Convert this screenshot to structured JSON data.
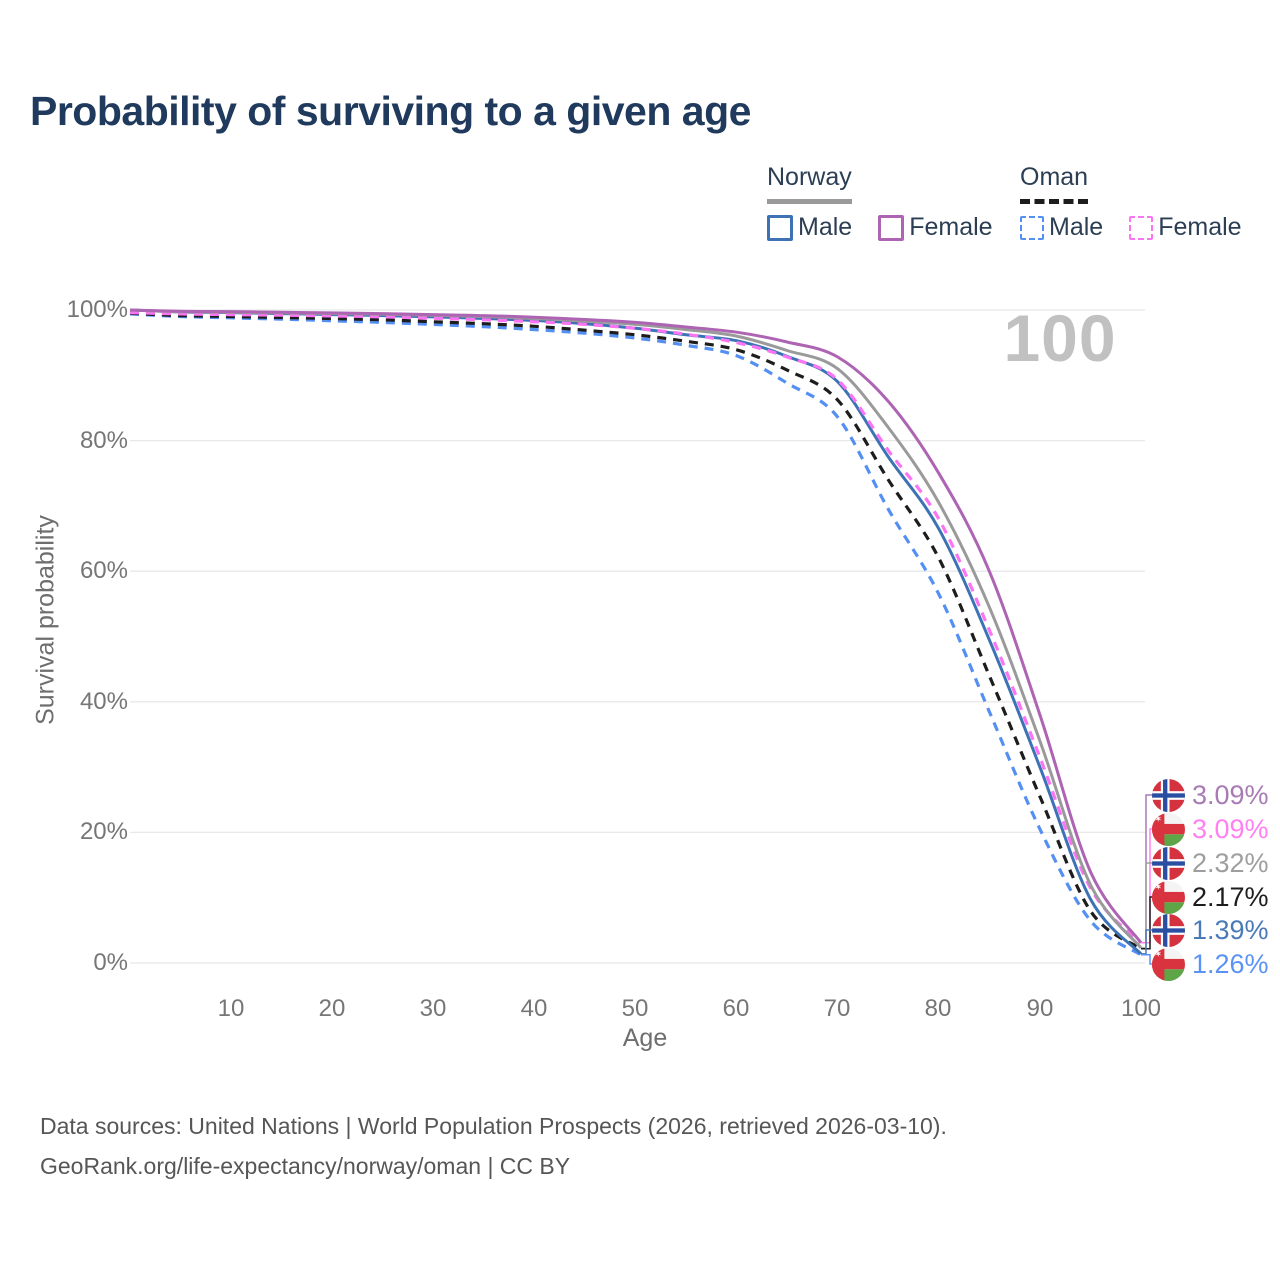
{
  "title": "Probability of surviving to a given age",
  "legend": {
    "groups": [
      {
        "name": "Norway",
        "items": [
          {
            "label": "Male"
          },
          {
            "label": "Female"
          }
        ]
      },
      {
        "name": "Oman",
        "items": [
          {
            "label": "Male"
          },
          {
            "label": "Female"
          }
        ]
      }
    ]
  },
  "watermark": "100",
  "chart_data": {
    "type": "line",
    "title": "Probability of surviving to a given age",
    "xlabel": "Age",
    "ylabel": "Survival probability",
    "xlim": [
      0,
      100
    ],
    "ylim": [
      0,
      100
    ],
    "grid": "horizontal",
    "legend_position": "top-right",
    "x_ticks": [
      "10",
      "20",
      "30",
      "40",
      "50",
      "60",
      "70",
      "80",
      "90",
      "100"
    ],
    "y_ticks": [
      "0%",
      "20%",
      "40%",
      "60%",
      "80%",
      "100%"
    ],
    "ages": [
      0,
      5,
      10,
      15,
      20,
      25,
      30,
      35,
      40,
      45,
      50,
      55,
      60,
      65,
      70,
      75,
      80,
      85,
      90,
      95,
      100
    ],
    "series": [
      {
        "key": "norway_female",
        "country": "Norway",
        "sex": "Female",
        "color": "#ad64b3",
        "style": "solid",
        "end_label": "3.09%",
        "values": [
          100,
          99.8,
          99.75,
          99.65,
          99.55,
          99.45,
          99.3,
          99.15,
          98.9,
          98.55,
          98.1,
          97.4,
          96.6,
          95.1,
          92.8,
          86,
          75,
          60,
          38,
          14,
          3.09
        ]
      },
      {
        "key": "norway_total",
        "country": "Norway",
        "sex": "Both",
        "color": "#9a9a9a",
        "style": "solid",
        "end_label": "2.32%",
        "values": [
          100,
          99.75,
          99.65,
          99.55,
          99.45,
          99.35,
          99.2,
          99,
          98.7,
          98.3,
          97.8,
          97,
          96,
          93.8,
          91,
          82,
          70.5,
          54.5,
          34,
          12,
          2.32
        ]
      },
      {
        "key": "norway_male",
        "country": "Norway",
        "sex": "Male",
        "color": "#3d73b5",
        "style": "solid",
        "end_label": "1.39%",
        "values": [
          100,
          99.7,
          99.6,
          99.45,
          99.3,
          99.15,
          98.95,
          98.7,
          98.4,
          97.9,
          97.2,
          96.2,
          95.3,
          92.9,
          89,
          77.5,
          66.5,
          49.5,
          30,
          9.8,
          1.39
        ]
      },
      {
        "key": "oman_female",
        "country": "Oman",
        "sex": "Female",
        "color": "#fb74f3",
        "style": "dashed",
        "end_label": "3.09%",
        "values": [
          99.6,
          99.4,
          99.3,
          99.2,
          99.1,
          98.95,
          98.75,
          98.5,
          98.2,
          97.8,
          97.2,
          96.3,
          95,
          92.8,
          89.3,
          78.5,
          68,
          51,
          31.5,
          11.5,
          3.09
        ]
      },
      {
        "key": "oman_total",
        "country": "Oman",
        "sex": "Both",
        "color": "#1d1d1d",
        "style": "dashed",
        "end_label": "2.17%",
        "values": [
          99.5,
          99.15,
          99,
          98.85,
          98.7,
          98.5,
          98.2,
          97.9,
          97.5,
          96.9,
          96.2,
          95.2,
          93.9,
          90.8,
          86.2,
          74,
          62,
          44,
          25.5,
          8,
          2.17
        ]
      },
      {
        "key": "oman_male",
        "country": "Oman",
        "sex": "Male",
        "color": "#548ff2",
        "style": "dashed",
        "end_label": "1.26%",
        "values": [
          99.4,
          99,
          98.8,
          98.6,
          98.35,
          98.1,
          97.8,
          97.45,
          97,
          96.45,
          95.7,
          94.6,
          93,
          88.8,
          83.6,
          69.5,
          56.5,
          38.5,
          20.5,
          6.5,
          1.26
        ]
      }
    ],
    "end_labels": [
      {
        "flag": "norway",
        "series": "norway_female",
        "value": "3.09%",
        "color": "#a97bb5"
      },
      {
        "flag": "oman",
        "series": "oman_female",
        "value": "3.09%",
        "color": "#ff80f0"
      },
      {
        "flag": "norway",
        "series": "norway_total",
        "value": "2.32%",
        "color": "#9e9e9e"
      },
      {
        "flag": "oman",
        "series": "oman_total",
        "value": "2.17%",
        "color": "#1d1d1d"
      },
      {
        "flag": "norway",
        "series": "norway_male",
        "value": "1.39%",
        "color": "#4a7ab8"
      },
      {
        "flag": "oman",
        "series": "oman_male",
        "value": "1.26%",
        "color": "#5b93f5"
      }
    ]
  },
  "footer": {
    "line1": "Data sources: United Nations | World Population Prospects (2026, retrieved 2026-03-10).",
    "line2": "GeoRank.org/life-expectancy/norway/oman | CC BY"
  }
}
